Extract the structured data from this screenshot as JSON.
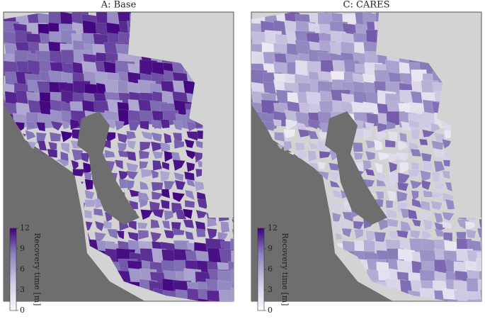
{
  "panels": [
    {
      "title": "A: Base",
      "colorbar": {
        "label": "Recovery time [m]",
        "lim": [
          0,
          12
        ],
        "ticks": [
          0,
          3,
          6,
          9,
          12
        ]
      }
    },
    {
      "title": "C: CARES",
      "colorbar": {
        "label": "Recovery time [m]",
        "lim": [
          0,
          12
        ],
        "ticks": [
          0,
          3,
          6,
          9,
          12
        ]
      }
    }
  ]
}
